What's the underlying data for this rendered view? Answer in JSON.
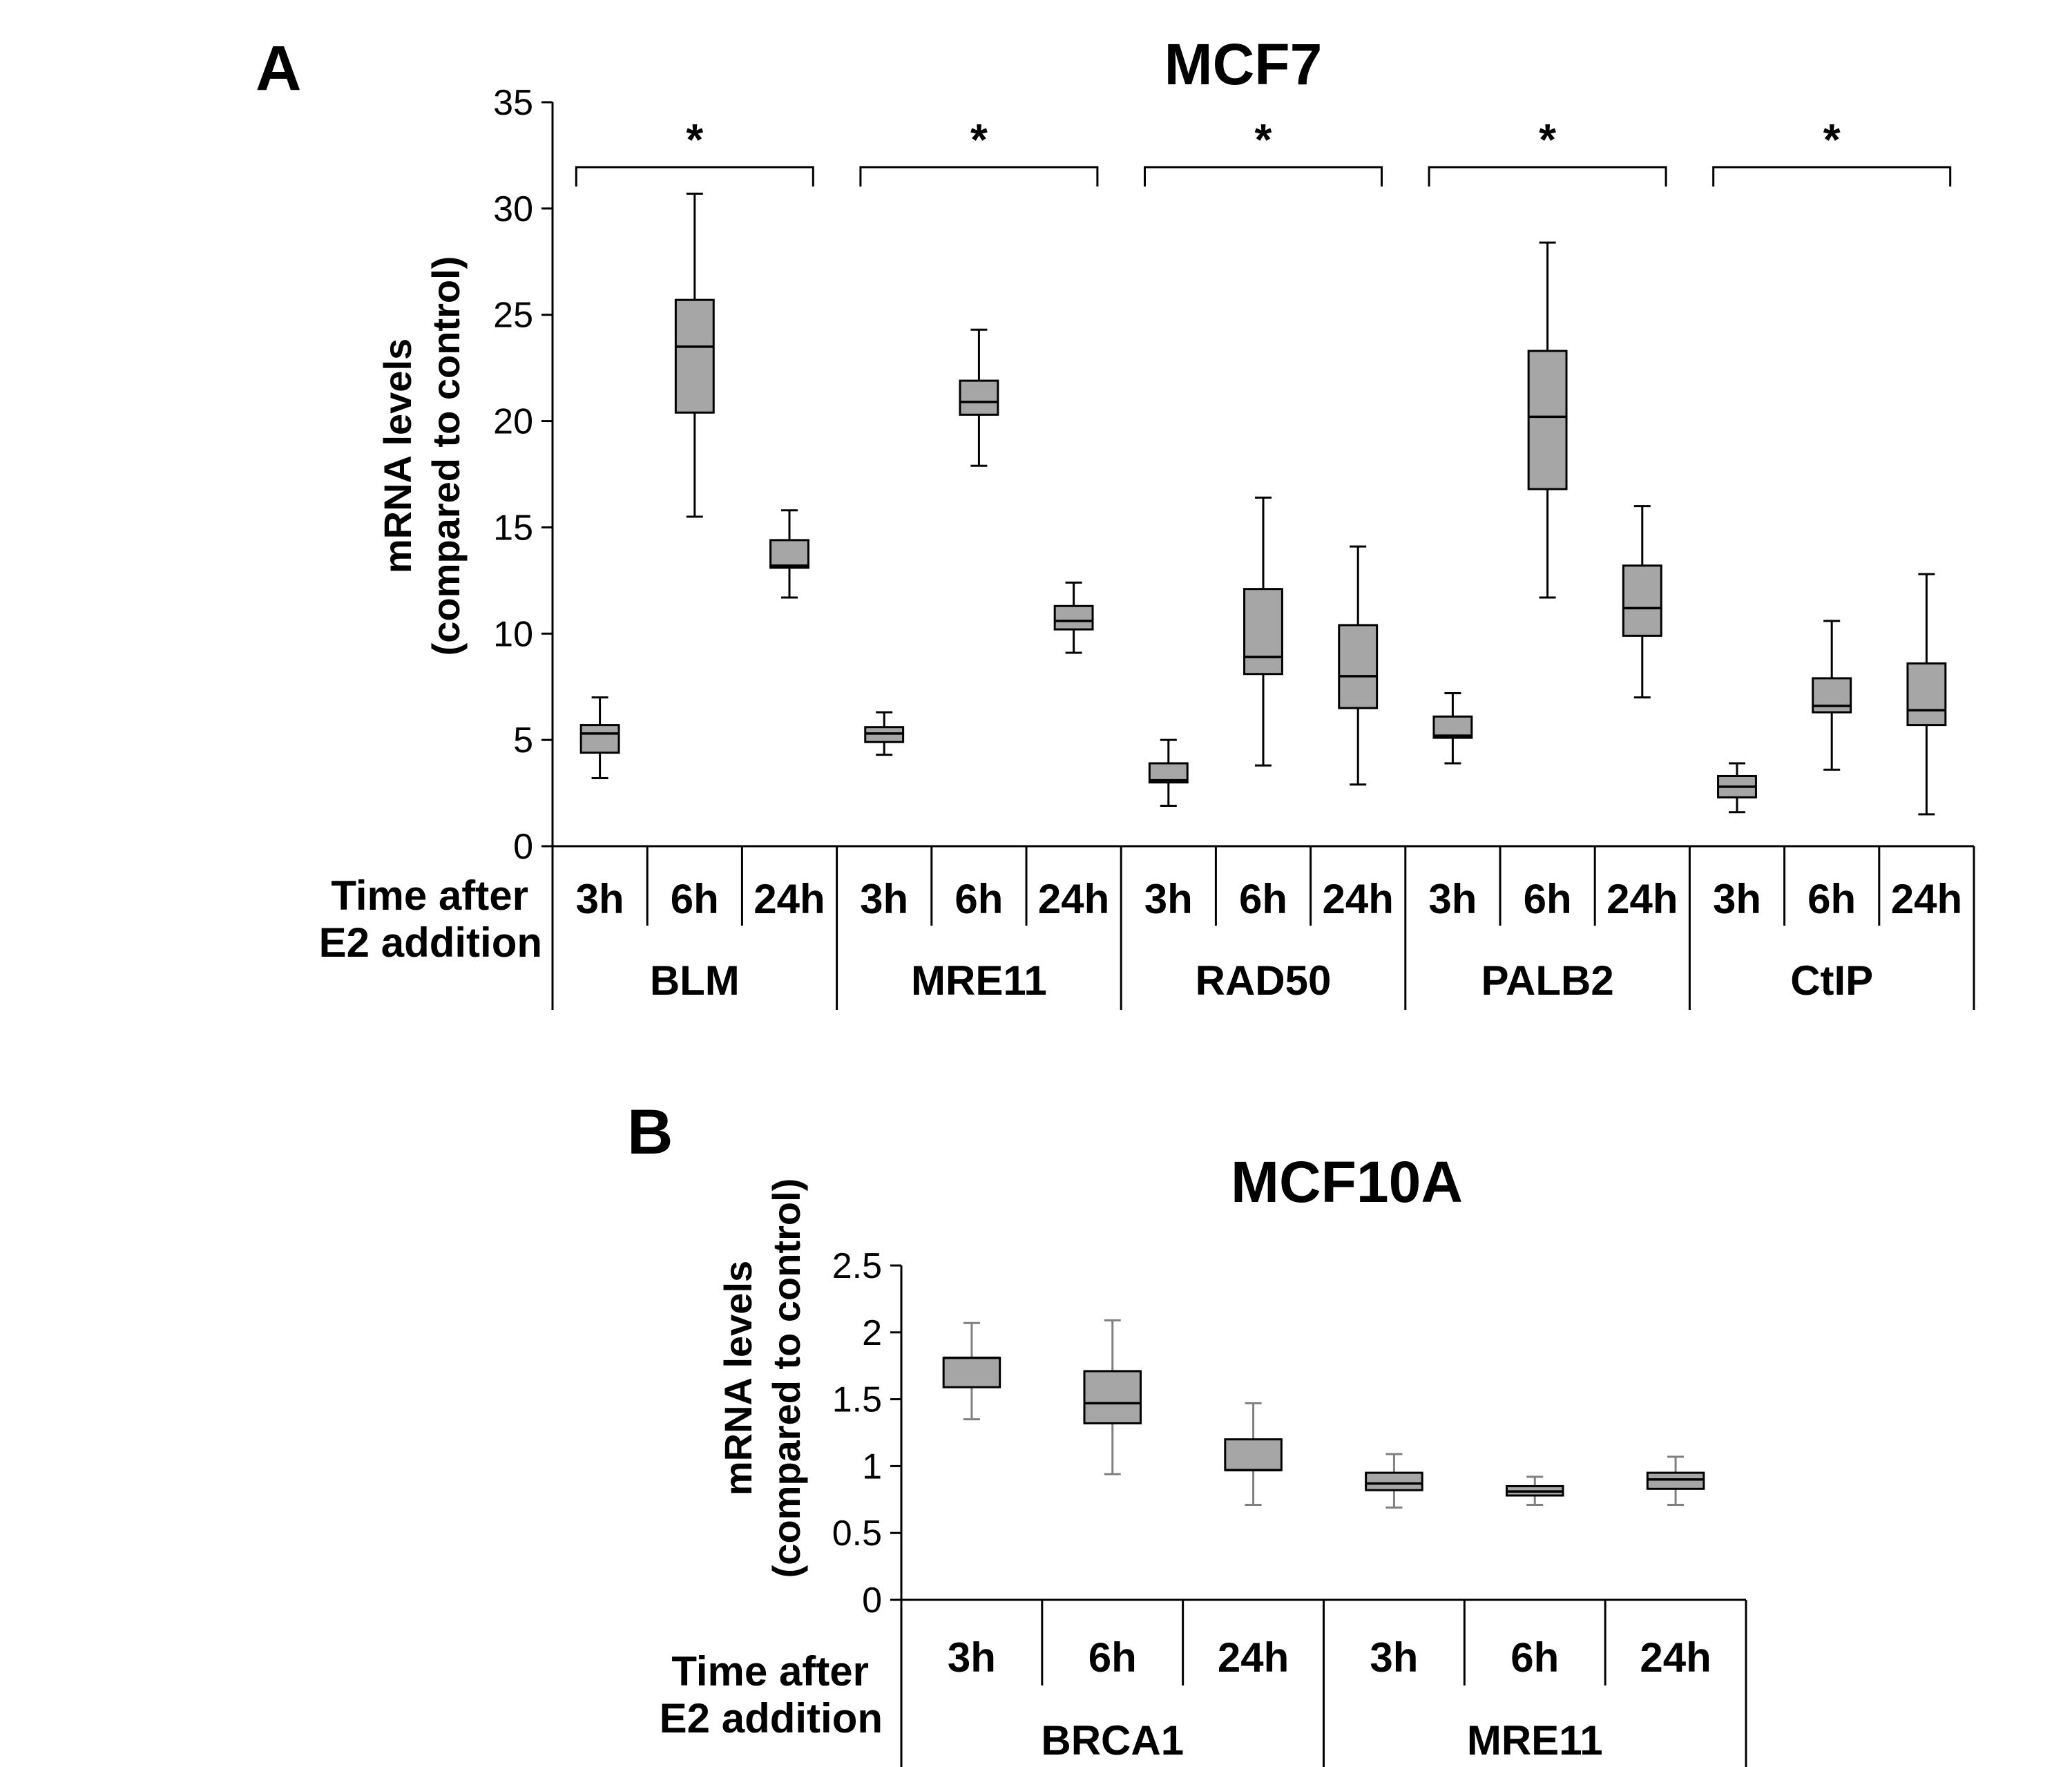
{
  "chart_data": [
    {
      "panel": "A",
      "type": "box",
      "title": "MCF7",
      "ylabel_lines": [
        "mRNA levels",
        "(compared to control)"
      ],
      "row_label_lines": [
        "Time after",
        "E2 addition"
      ],
      "ylim": [
        0,
        35
      ],
      "yticks": [
        "0",
        "5",
        "10",
        "15",
        "20",
        "25",
        "30",
        "35"
      ],
      "box_fill": "#a6a6a6",
      "whisker_color": "#000000",
      "groups": [
        {
          "name": "BLM",
          "significance": "*",
          "boxes": [
            {
              "time": "3h",
              "min": 3.2,
              "q1": 4.4,
              "median": 5.3,
              "q3": 5.7,
              "max": 7.0
            },
            {
              "time": "6h",
              "min": 15.5,
              "q1": 20.4,
              "median": 23.5,
              "q3": 25.7,
              "max": 30.7
            },
            {
              "time": "24h",
              "min": 11.7,
              "q1": 13.1,
              "median": 13.2,
              "q3": 14.4,
              "max": 15.8
            }
          ]
        },
        {
          "name": "MRE11",
          "significance": "*",
          "boxes": [
            {
              "time": "3h",
              "min": 4.3,
              "q1": 4.9,
              "median": 5.3,
              "q3": 5.6,
              "max": 6.3
            },
            {
              "time": "6h",
              "min": 17.9,
              "q1": 20.3,
              "median": 20.9,
              "q3": 21.9,
              "max": 24.3
            },
            {
              "time": "24h",
              "min": 9.1,
              "q1": 10.2,
              "median": 10.6,
              "q3": 11.3,
              "max": 12.4
            }
          ]
        },
        {
          "name": "RAD50",
          "significance": "*",
          "boxes": [
            {
              "time": "3h",
              "min": 1.9,
              "q1": 3.0,
              "median": 3.1,
              "q3": 3.9,
              "max": 5.0
            },
            {
              "time": "6h",
              "min": 3.8,
              "q1": 8.1,
              "median": 8.9,
              "q3": 12.1,
              "max": 16.4
            },
            {
              "time": "24h",
              "min": 2.9,
              "q1": 6.5,
              "median": 8.0,
              "q3": 10.4,
              "max": 14.1
            }
          ]
        },
        {
          "name": "PALB2",
          "significance": "*",
          "boxes": [
            {
              "time": "3h",
              "min": 3.9,
              "q1": 5.1,
              "median": 5.2,
              "q3": 6.1,
              "max": 7.2
            },
            {
              "time": "6h",
              "min": 11.7,
              "q1": 16.8,
              "median": 20.2,
              "q3": 23.3,
              "max": 28.4
            },
            {
              "time": "24h",
              "min": 7.0,
              "q1": 9.9,
              "median": 11.2,
              "q3": 13.2,
              "max": 16.0
            }
          ]
        },
        {
          "name": "CtIP",
          "significance": "*",
          "boxes": [
            {
              "time": "3h",
              "min": 1.6,
              "q1": 2.3,
              "median": 2.8,
              "q3": 3.3,
              "max": 3.9
            },
            {
              "time": "6h",
              "min": 3.6,
              "q1": 6.3,
              "median": 6.6,
              "q3": 7.9,
              "max": 10.6
            },
            {
              "time": "24h",
              "min": 1.5,
              "q1": 5.7,
              "median": 6.4,
              "q3": 8.6,
              "max": 12.8
            }
          ]
        }
      ]
    },
    {
      "panel": "B",
      "type": "box",
      "title": "MCF10A",
      "ylabel_lines": [
        "mRNA levels",
        "(compared to control)"
      ],
      "row_label_lines": [
        "Time after",
        "E2 addition"
      ],
      "ylim": [
        0,
        2.5
      ],
      "yticks": [
        "0",
        "0.5",
        "1",
        "1.5",
        "2",
        "2.5"
      ],
      "box_fill": "#a6a6a6",
      "whisker_color": "#808080",
      "groups": [
        {
          "name": "BRCA1",
          "boxes": [
            {
              "time": "3h",
              "min": 1.35,
              "q1": 1.59,
              "median": 1.81,
              "q3": 1.81,
              "max": 2.07
            },
            {
              "time": "6h",
              "min": 0.94,
              "q1": 1.32,
              "median": 1.47,
              "q3": 1.71,
              "max": 2.09
            },
            {
              "time": "24h",
              "min": 0.71,
              "q1": 0.97,
              "median": 0.97,
              "q3": 1.2,
              "max": 1.47
            }
          ]
        },
        {
          "name": "MRE11",
          "boxes": [
            {
              "time": "3h",
              "min": 0.69,
              "q1": 0.82,
              "median": 0.87,
              "q3": 0.95,
              "max": 1.09
            },
            {
              "time": "6h",
              "min": 0.71,
              "q1": 0.78,
              "median": 0.81,
              "q3": 0.85,
              "max": 0.92
            },
            {
              "time": "24h",
              "min": 0.71,
              "q1": 0.83,
              "median": 0.9,
              "q3": 0.95,
              "max": 1.07
            }
          ]
        }
      ]
    }
  ]
}
